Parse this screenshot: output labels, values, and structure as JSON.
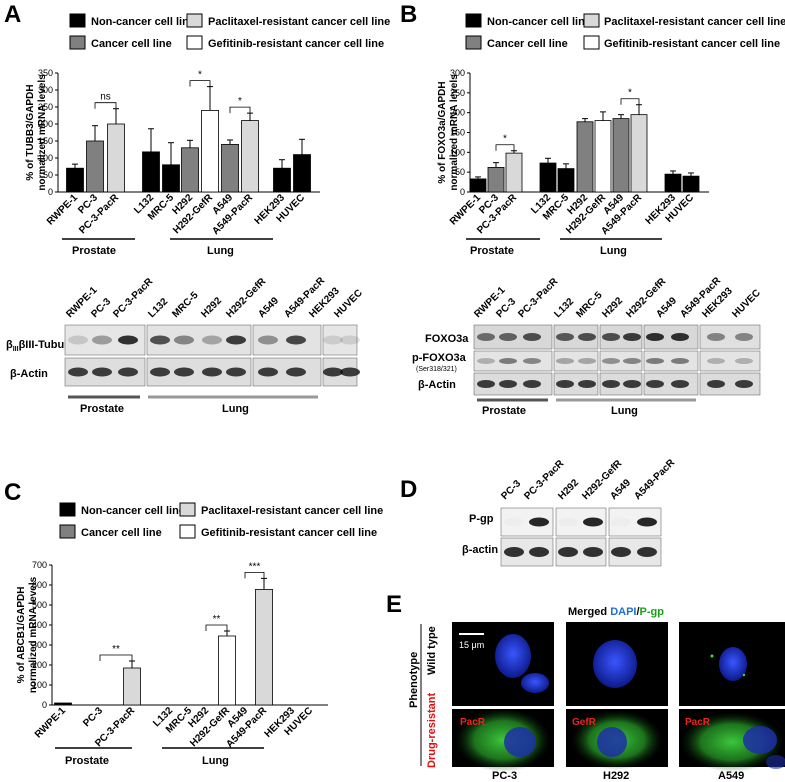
{
  "panels": {
    "A": "A",
    "B": "B",
    "C": "C",
    "D": "D",
    "E": "E"
  },
  "legend": {
    "non_cancer": "Non-cancer cell line",
    "cancer": "Cancer cell line",
    "paclitaxel": "Paclitaxel-resistant cancer cell line",
    "gefitinib": "Gefitinib-resistant cancer cell line"
  },
  "colors": {
    "non_cancer": "#000000",
    "cancer": "#808080",
    "paclitaxel": "#d9d9d9",
    "gefitinib": "#ffffff"
  },
  "groups": {
    "prostate": "Prostate",
    "lung": "Lung"
  },
  "chart_data": [
    {
      "panel": "A",
      "type": "bar",
      "ylabel": [
        "% of TUBB3/GAPDH",
        "normalized mRNA levels"
      ],
      "ylim": [
        0,
        350
      ],
      "yticks": [
        0,
        50,
        100,
        150,
        200,
        250,
        300,
        350
      ],
      "categories": [
        "RWPE-1",
        "PC-3",
        "PC-3-PacR",
        "L132",
        "MRC-5",
        "H292",
        "H292-GefR",
        "A549",
        "A549-PacR",
        "HEK293",
        "HUVEC"
      ],
      "values": [
        70,
        150,
        200,
        118,
        80,
        130,
        240,
        140,
        210,
        70,
        110
      ],
      "errors": [
        12,
        45,
        45,
        68,
        65,
        22,
        70,
        13,
        22,
        25,
        45
      ],
      "bar_types": [
        "non_cancer",
        "cancer",
        "paclitaxel",
        "non_cancer",
        "non_cancer",
        "cancer",
        "gefitinib",
        "cancer",
        "paclitaxel",
        "non_cancer",
        "non_cancer"
      ],
      "significance": [
        {
          "from": 1,
          "to": 2,
          "label": "ns"
        },
        {
          "from": 5,
          "to": 6,
          "label": "*"
        },
        {
          "from": 7,
          "to": 8,
          "label": "*"
        }
      ]
    },
    {
      "panel": "B",
      "type": "bar",
      "ylabel": [
        "% of FOXO3a/GAPDH",
        "normalized mRNA levels"
      ],
      "ylim": [
        0,
        300
      ],
      "yticks": [
        0,
        50,
        100,
        150,
        200,
        250,
        300
      ],
      "categories": [
        "RWPE-1",
        "PC-3",
        "PC-3-PacR",
        "L132",
        "MRC-5",
        "H292",
        "H292-GefR",
        "A549",
        "A549-PacR",
        "HEK293",
        "HUVEC"
      ],
      "values": [
        33,
        62,
        98,
        73,
        59,
        177,
        180,
        185,
        195,
        45,
        40
      ],
      "errors": [
        5,
        12,
        6,
        12,
        12,
        8,
        22,
        10,
        25,
        8,
        8
      ],
      "bar_types": [
        "non_cancer",
        "cancer",
        "paclitaxel",
        "non_cancer",
        "non_cancer",
        "cancer",
        "gefitinib",
        "cancer",
        "paclitaxel",
        "non_cancer",
        "non_cancer"
      ],
      "significance": [
        {
          "from": 1,
          "to": 2,
          "label": "*"
        },
        {
          "from": 7,
          "to": 8,
          "label": "*"
        }
      ]
    },
    {
      "panel": "C",
      "type": "bar",
      "ylabel": [
        "% of ABCB1/GAPDH",
        "normalized mRNA levels"
      ],
      "ylim": [
        0,
        700
      ],
      "yticks": [
        0,
        100,
        200,
        300,
        400,
        500,
        600,
        700
      ],
      "categories": [
        "RWPE-1",
        "PC-3",
        "PC-3-PacR",
        "L132",
        "MRC-5",
        "H292",
        "H292-GefR",
        "A549",
        "A549-PacR",
        "HEK293",
        "HUVEC"
      ],
      "values": [
        10,
        0,
        185,
        0,
        0,
        0,
        345,
        0,
        578,
        0,
        0
      ],
      "errors": [
        0,
        0,
        35,
        0,
        0,
        0,
        25,
        0,
        55,
        0,
        0
      ],
      "bar_types": [
        "non_cancer",
        "cancer",
        "paclitaxel",
        "non_cancer",
        "non_cancer",
        "cancer",
        "gefitinib",
        "cancer",
        "paclitaxel",
        "non_cancer",
        "non_cancer"
      ],
      "significance": [
        {
          "from": 1,
          "to": 2,
          "label": "**"
        },
        {
          "from": 5,
          "to": 6,
          "label": "**"
        },
        {
          "from": 7,
          "to": 8,
          "label": "***"
        }
      ]
    }
  ],
  "blot_A": {
    "columns": [
      "RWPE-1",
      "PC-3",
      "PC-3-PacR",
      "L132",
      "MRC-5",
      "H292",
      "H292-GefR",
      "A549",
      "A549-PacR",
      "HEK293",
      "HUVEC"
    ],
    "row1": "βIII-Tubulin",
    "row2": "β-Actin"
  },
  "blot_B": {
    "columns": [
      "RWPE-1",
      "PC-3",
      "PC-3-PacR",
      "L132",
      "MRC-5",
      "H292",
      "H292-GefR",
      "A549",
      "A549-PacR",
      "HEK293",
      "HUVEC"
    ],
    "row1": "FOXO3a",
    "row2": "p-FOXO3a",
    "row2_sub": "(Ser318/321)",
    "row3": "β-Actin"
  },
  "blot_D": {
    "columns": [
      "PC-3",
      "PC-3-PacR",
      "H292",
      "H292-GefR",
      "A549",
      "A549-PacR"
    ],
    "row1": "P-gp",
    "row2": "β-actin"
  },
  "panel_E": {
    "title_pre": "Merged ",
    "dapi": "DAPI",
    "slash": "/",
    "pgp": "P-gp",
    "scale": "15 μm",
    "phenotype": "Phenotype",
    "wild_type": "Wild type",
    "drug_resistant": "Drug-resistant",
    "labels": [
      "PacR",
      "GefR",
      "PacR"
    ],
    "cells": [
      "PC-3",
      "H292",
      "A549"
    ]
  }
}
